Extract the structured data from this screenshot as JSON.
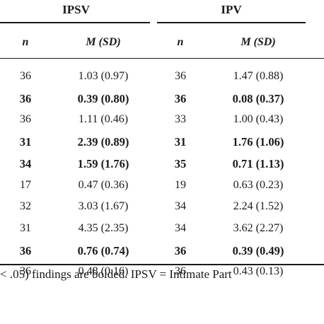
{
  "table": {
    "groups": [
      {
        "label": "IPSV"
      },
      {
        "label": "IPV"
      }
    ],
    "columns": [
      "n",
      "M (SD)",
      "n",
      "M (SD)"
    ],
    "rows": [
      {
        "bold": false,
        "ipsv_n": "36",
        "ipsv_m": "1.03 (0.97)",
        "ipv_n": "36",
        "ipv_m": "1.47 (0.88)"
      },
      {
        "bold": true,
        "ipsv_n": "36",
        "ipsv_m": "0.39 (0.80)",
        "ipv_n": "36",
        "ipv_m": "0.08 (0.37)"
      },
      {
        "bold": false,
        "ipsv_n": "36",
        "ipsv_m": "1.11 (0.46)",
        "ipv_n": "33",
        "ipv_m": "1.00 (0.43)"
      },
      {
        "bold": true,
        "ipsv_n": "31",
        "ipsv_m": "2.39 (0.89)",
        "ipv_n": "31",
        "ipv_m": "1.76 (1.06)"
      },
      {
        "bold": true,
        "ipsv_n": "34",
        "ipsv_m": "1.59 (1.76)",
        "ipv_n": "35",
        "ipv_m": "0.71 (1.13)"
      },
      {
        "bold": false,
        "ipsv_n": "17",
        "ipsv_m": "0.47 (0.36)",
        "ipv_n": "19",
        "ipv_m": "0.63 (0.23)"
      },
      {
        "bold": false,
        "ipsv_n": "32",
        "ipsv_m": "3.03 (1.67)",
        "ipv_n": "34",
        "ipv_m": "2.24 (1.52)"
      },
      {
        "bold": false,
        "ipsv_n": "31",
        "ipsv_m": "4.35 (2.35)",
        "ipv_n": "34",
        "ipv_m": "3.62 (2.27)"
      },
      {
        "bold": true,
        "ipsv_n": "36",
        "ipsv_m": "0.76 (0.74)",
        "ipv_n": "36",
        "ipv_m": "0.39 (0.49)"
      },
      {
        "bold": false,
        "ipsv_n": "36",
        "ipsv_m": "0.48 (0.16)",
        "ipv_n": "36",
        "ipv_m": "0.43 (0.13)"
      }
    ]
  },
  "footnote": "< .05) findings are bolded. IPSV = Intimate Part"
}
